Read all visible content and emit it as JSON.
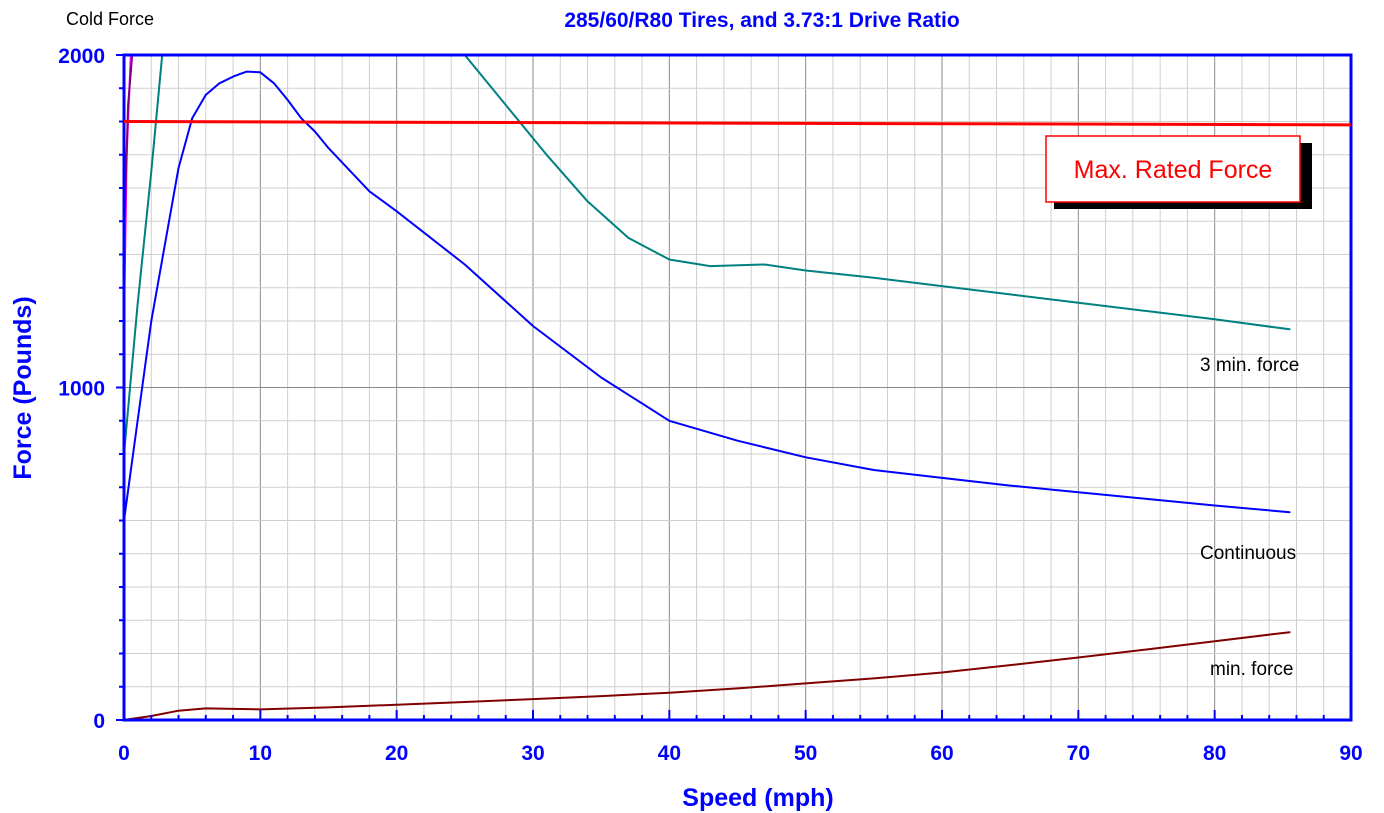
{
  "chart_data": {
    "type": "line",
    "title": "285/60/R80 Tires, and 3.73:1 Drive Ratio",
    "corner_label": "Cold Force",
    "xlabel": "Speed  (mph)",
    "ylabel": "Force  (Pounds)",
    "xlim": [
      0,
      90
    ],
    "ylim": [
      0,
      2000
    ],
    "x_ticks": [
      0,
      10,
      20,
      30,
      40,
      50,
      60,
      70,
      80,
      90
    ],
    "y_tick_labels": [
      0,
      1000,
      2000
    ],
    "grid": true,
    "reference_line": {
      "label": "Max. Rated  Force",
      "y_start": 1800,
      "y_end": 1790,
      "color": "#ff0000"
    },
    "annotations": {
      "three_min": "3 min. force",
      "continuous": "Continuous",
      "min": "min. force"
    },
    "series": [
      {
        "color": "#ff00ff",
        "points": [
          [
            0,
            1200
          ],
          [
            0.2,
            1700
          ],
          [
            0.5,
            2000
          ]
        ]
      },
      {
        "color": "#800080",
        "points": [
          [
            0,
            1450
          ],
          [
            0.3,
            1850
          ],
          [
            0.6,
            2000
          ]
        ]
      },
      {
        "color": "#008080",
        "points": [
          [
            0,
            800
          ],
          [
            1,
            1250
          ],
          [
            2,
            1650
          ],
          [
            2.8,
            2000
          ],
          [
            25,
            2000
          ],
          [
            28,
            1850
          ],
          [
            31,
            1700
          ],
          [
            34,
            1560
          ],
          [
            37,
            1450
          ],
          [
            40,
            1385
          ],
          [
            43,
            1365
          ],
          [
            47,
            1370
          ],
          [
            50,
            1352
          ],
          [
            55,
            1330
          ],
          [
            60,
            1305
          ],
          [
            65,
            1280
          ],
          [
            70,
            1255
          ],
          [
            75,
            1230
          ],
          [
            80,
            1205
          ],
          [
            85.5,
            1175
          ]
        ]
      },
      {
        "color": "#0000ff",
        "points": [
          [
            0,
            600
          ],
          [
            1,
            900
          ],
          [
            2,
            1200
          ],
          [
            3,
            1430
          ],
          [
            4,
            1660
          ],
          [
            5,
            1810
          ],
          [
            6,
            1880
          ],
          [
            7,
            1915
          ],
          [
            8,
            1935
          ],
          [
            9,
            1950
          ],
          [
            10,
            1948
          ],
          [
            11,
            1915
          ],
          [
            12,
            1865
          ],
          [
            13,
            1810
          ],
          [
            14,
            1770
          ],
          [
            15,
            1720
          ],
          [
            18,
            1590
          ],
          [
            20,
            1530
          ],
          [
            25,
            1370
          ],
          [
            30,
            1185
          ],
          [
            35,
            1030
          ],
          [
            40,
            900
          ],
          [
            45,
            840
          ],
          [
            50,
            790
          ],
          [
            55,
            752
          ],
          [
            60,
            728
          ],
          [
            65,
            705
          ],
          [
            70,
            685
          ],
          [
            75,
            665
          ],
          [
            80,
            645
          ],
          [
            85.5,
            625
          ]
        ]
      },
      {
        "color": "#800000",
        "points": [
          [
            0,
            0
          ],
          [
            2,
            12
          ],
          [
            4,
            28
          ],
          [
            6,
            35
          ],
          [
            10,
            32
          ],
          [
            15,
            38
          ],
          [
            20,
            46
          ],
          [
            25,
            54
          ],
          [
            30,
            63
          ],
          [
            35,
            72
          ],
          [
            40,
            82
          ],
          [
            45,
            95
          ],
          [
            50,
            110
          ],
          [
            55,
            125
          ],
          [
            60,
            143
          ],
          [
            65,
            165
          ],
          [
            70,
            188
          ],
          [
            75,
            212
          ],
          [
            80,
            237
          ],
          [
            85.5,
            264
          ]
        ]
      }
    ]
  }
}
